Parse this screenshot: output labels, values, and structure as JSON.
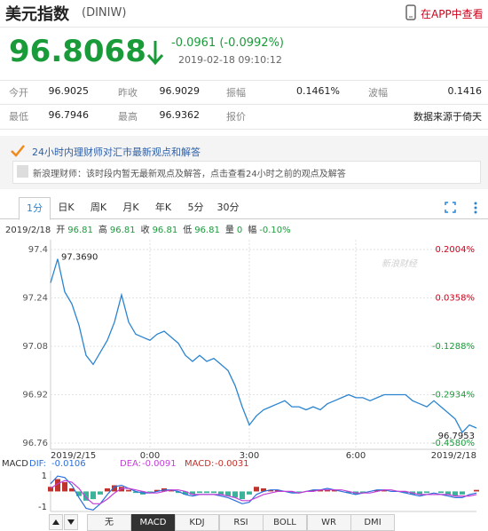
{
  "header": {
    "title": "美元指数",
    "code": "(DINIW)",
    "app_link": "在APP中查看"
  },
  "quote": {
    "price": "96.8068",
    "change": "-0.0961",
    "change_pct": "(-0.0992%)",
    "time": "2019-02-18 09:10:12"
  },
  "stats": {
    "rows": [
      [
        [
          "今开",
          "96.9025"
        ],
        [
          "昨收",
          "96.9029"
        ],
        [
          "振幅",
          "0.1461%"
        ],
        [
          "波幅",
          "0.1416"
        ]
      ],
      [
        [
          "最低",
          "96.7946"
        ],
        [
          "最高",
          "96.9362"
        ],
        [
          "报价",
          "数据来源于倚天"
        ]
      ]
    ]
  },
  "advisor": {
    "heading": "24小时内理财师对汇市最新观点和解答",
    "source": "新浪理财师：",
    "message": "该时段内暂无最新观点及解答，点击查看24小时之前的观点及解答"
  },
  "tabs": {
    "items": [
      "1分",
      "日K",
      "周K",
      "月K",
      "年K",
      "5分",
      "30分"
    ],
    "active": "1分"
  },
  "bar_info": {
    "date": "2019/2/18",
    "fields": [
      [
        "开",
        "96.81"
      ],
      [
        "高",
        "96.81"
      ],
      [
        "收",
        "96.81"
      ],
      [
        "低",
        "96.81"
      ],
      [
        "量",
        "0"
      ],
      [
        "幅",
        "-0.10%"
      ]
    ]
  },
  "indicators": {
    "items": [
      "无",
      "MACD",
      "KDJ",
      "RSI",
      "BOLL",
      "WR",
      "DMI"
    ],
    "active": "MACD"
  },
  "chart_data": [
    {
      "type": "line",
      "categories": [
        "2019/2/15",
        null,
        null,
        null,
        null,
        null,
        null,
        null,
        null,
        null,
        null,
        null,
        null,
        null,
        "0:00",
        null,
        null,
        null,
        null,
        null,
        null,
        null,
        null,
        null,
        null,
        null,
        null,
        null,
        "3:00",
        null,
        null,
        null,
        null,
        null,
        null,
        null,
        null,
        null,
        null,
        null,
        null,
        null,
        null,
        "6:00",
        null,
        null,
        null,
        null,
        null,
        null,
        null,
        null,
        null,
        null,
        null,
        null,
        null,
        null,
        null,
        null,
        "2019/2/18"
      ],
      "series": [
        {
          "color": "#2b84cf",
          "values": [
            97.29,
            97.369,
            97.26,
            97.22,
            97.15,
            97.05,
            97.02,
            97.06,
            97.1,
            97.16,
            97.25,
            97.16,
            97.12,
            97.11,
            97.1,
            97.12,
            97.13,
            97.11,
            97.09,
            97.05,
            97.03,
            97.05,
            97.03,
            97.04,
            97.02,
            97.0,
            96.95,
            96.88,
            96.82,
            96.85,
            96.87,
            96.88,
            96.89,
            96.9,
            96.88,
            96.88,
            96.87,
            96.88,
            96.87,
            96.89,
            96.9,
            96.91,
            96.92,
            96.91,
            96.91,
            96.9,
            96.91,
            96.92,
            96.92,
            96.92,
            96.92,
            96.9,
            96.89,
            96.88,
            96.9,
            96.88,
            96.86,
            96.84,
            96.7953,
            96.82,
            96.81
          ]
        }
      ],
      "ylim": [
        96.76,
        97.4
      ],
      "yticks": [
        97.4,
        97.24,
        97.08,
        96.92,
        96.76
      ],
      "y2lim": [
        -0.458,
        0.2004
      ],
      "y2ticks": [
        {
          "value": 0.2004,
          "label": "0.2004%"
        },
        {
          "value": 0.0358,
          "label": "0.0358%"
        },
        {
          "value": -0.1288,
          "label": "-0.1288%"
        },
        {
          "value": -0.2934,
          "label": "-0.2934%"
        },
        {
          "value": -0.458,
          "label": "-0.4580%"
        }
      ],
      "annotations": {
        "max": "97.3690",
        "min": "96.7953"
      },
      "watermark": "新浪财经",
      "grid": true
    },
    {
      "type": "macd",
      "title": "MACD",
      "series": [
        {
          "name": "DIF:",
          "latest": "-0.0106",
          "kind": "line",
          "color": "#2a6fdb",
          "values": [
            0.5,
            1.0,
            0.9,
            0.4,
            -0.4,
            -1.1,
            -1.2,
            -0.8,
            -0.2,
            0.3,
            0.4,
            0.2,
            0,
            -0.1,
            -0.1,
            0,
            0.1,
            0.1,
            0,
            -0.2,
            -0.3,
            -0.2,
            -0.2,
            -0.2,
            -0.3,
            -0.4,
            -0.6,
            -0.8,
            -0.7,
            -0.2,
            0,
            0.1,
            0.1,
            0,
            -0.1,
            -0.1,
            0,
            0.1,
            0.1,
            0.2,
            0.1,
            0,
            -0.1,
            -0.2,
            -0.1,
            0,
            0.1,
            0.1,
            0,
            0,
            -0.1,
            -0.2,
            -0.3,
            -0.2,
            -0.1,
            -0.2,
            -0.3,
            -0.4,
            -0.4,
            -0.2,
            -0.1
          ]
        },
        {
          "name": "DEA:",
          "latest": "-0.0091",
          "kind": "line",
          "color": "#c23fd6",
          "values": [
            0.2,
            0.5,
            0.7,
            0.6,
            0.2,
            -0.4,
            -0.8,
            -0.8,
            -0.5,
            -0.1,
            0.2,
            0.2,
            0.1,
            0,
            -0.1,
            -0.1,
            0,
            0.1,
            0.1,
            0,
            -0.2,
            -0.2,
            -0.2,
            -0.2,
            -0.2,
            -0.3,
            -0.4,
            -0.6,
            -0.6,
            -0.4,
            -0.2,
            -0.1,
            0,
            0,
            0,
            -0.1,
            0,
            0,
            0.1,
            0.1,
            0.1,
            0.1,
            0,
            -0.1,
            -0.1,
            -0.1,
            0,
            0.1,
            0.1,
            0,
            0,
            -0.1,
            -0.2,
            -0.2,
            -0.2,
            -0.2,
            -0.2,
            -0.3,
            -0.3,
            -0.3,
            -0.2
          ]
        },
        {
          "name": "MACD:",
          "latest": "-0.0031",
          "kind": "bar",
          "color": "#c0322b",
          "down_color": "#3bb39b",
          "values": [
            0.3,
            0.8,
            0.6,
            0.2,
            -0.3,
            -0.6,
            -0.5,
            -0.2,
            0.2,
            0.4,
            0.3,
            0.1,
            -0.1,
            -0.2,
            -0.1,
            0.1,
            0.2,
            0.1,
            -0.1,
            -0.2,
            -0.2,
            -0.1,
            -0.1,
            -0.1,
            -0.2,
            -0.3,
            -0.4,
            -0.5,
            -0.2,
            0.3,
            0.2,
            0.1,
            0.1,
            0,
            -0.1,
            -0.1,
            0,
            0.1,
            0.1,
            0.1,
            0.1,
            0,
            -0.1,
            -0.2,
            -0.1,
            0,
            0.1,
            0.1,
            0,
            0,
            -0.1,
            -0.2,
            -0.2,
            -0.1,
            0,
            -0.1,
            -0.2,
            -0.3,
            -0.2,
            0,
            0.1
          ]
        }
      ],
      "ylim": [
        -1.3,
        1.35
      ],
      "yticks": [
        1,
        -1
      ]
    }
  ]
}
